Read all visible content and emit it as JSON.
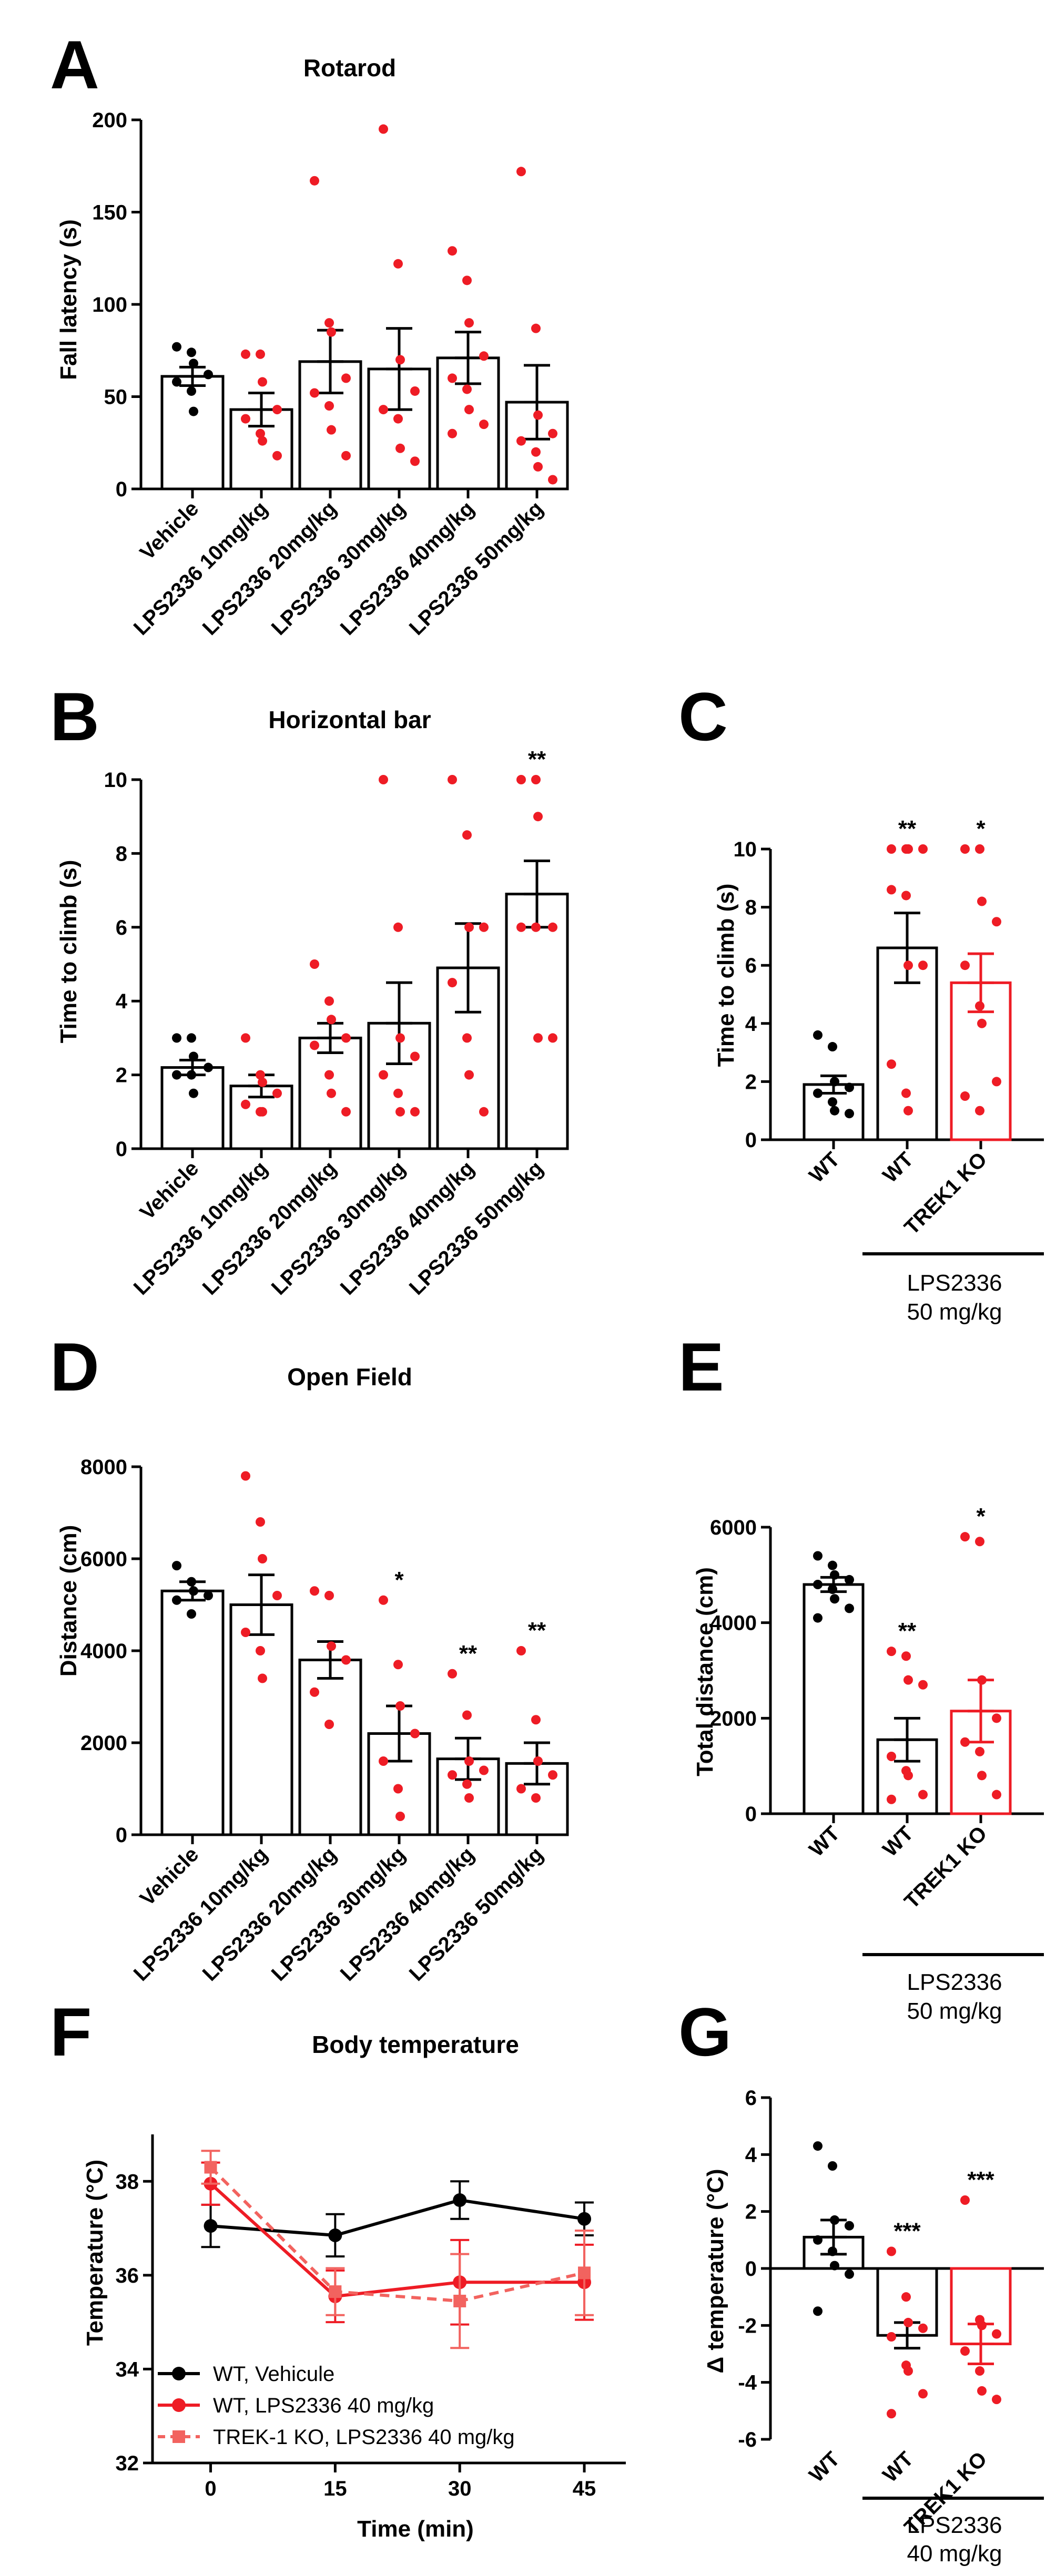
{
  "panel_letters": [
    "A",
    "B",
    "C",
    "D",
    "E",
    "F",
    "G"
  ],
  "chart_data": [
    {
      "panel": "A",
      "type": "bar",
      "title": "Rotarod",
      "ylabel": "Fall latency (s)",
      "xlabel": "",
      "ylim": [
        0,
        200
      ],
      "yticks": [
        0,
        50,
        100,
        150,
        200
      ],
      "categories": [
        "Vehicle",
        "LPS2336 10mg/kg",
        "LPS2336 20mg/kg",
        "LPS2336 30mg/kg",
        "LPS2336 40mg/kg",
        "LPS2336 50mg/kg"
      ],
      "values": [
        61,
        43,
        69,
        65,
        71,
        47
      ],
      "errors": [
        5,
        9,
        17,
        22,
        14,
        20
      ],
      "significance": [
        "",
        "",
        "",
        "",
        "",
        ""
      ],
      "points": [
        [
          77,
          74,
          68,
          62,
          58,
          53,
          42
        ],
        [
          73,
          73,
          58,
          43,
          38,
          30,
          26,
          18
        ],
        [
          167,
          90,
          85,
          60,
          52,
          45,
          32,
          18
        ],
        [
          195,
          122,
          70,
          53,
          43,
          38,
          22,
          15
        ],
        [
          129,
          113,
          90,
          72,
          60,
          54,
          43,
          35,
          30
        ],
        [
          172,
          87,
          40,
          30,
          26,
          20,
          12,
          5
        ]
      ],
      "point_colors": [
        "#000000",
        "#ee1c25",
        "#ee1c25",
        "#ee1c25",
        "#ee1c25",
        "#ee1c25"
      ],
      "bar_colors": [
        "#000000",
        "#000000",
        "#000000",
        "#000000",
        "#000000",
        "#000000"
      ]
    },
    {
      "panel": "B",
      "type": "bar",
      "title": "Horizontal bar",
      "ylabel": "Time to climb (s)",
      "xlabel": "",
      "ylim": [
        0,
        10
      ],
      "yticks": [
        0,
        2,
        4,
        6,
        8,
        10
      ],
      "categories": [
        "Vehicle",
        "LPS2336 10mg/kg",
        "LPS2336 20mg/kg",
        "LPS2336 30mg/kg",
        "LPS2336 40mg/kg",
        "LPS2336 50mg/kg"
      ],
      "values": [
        2.2,
        1.7,
        3.0,
        3.4,
        4.9,
        6.9
      ],
      "errors": [
        0.2,
        0.3,
        0.4,
        1.1,
        1.2,
        0.9
      ],
      "significance": [
        "",
        "",
        "",
        "",
        "",
        "**"
      ],
      "points": [
        [
          3.0,
          3.0,
          2.5,
          2.2,
          2.0,
          2.0,
          1.5
        ],
        [
          3.0,
          2.0,
          1.8,
          1.5,
          1.2,
          1.0,
          1.0
        ],
        [
          5.0,
          4.0,
          3.5,
          3.0,
          2.8,
          2.0,
          1.5,
          1.0
        ],
        [
          10,
          6.0,
          3.0,
          2.5,
          2.0,
          1.5,
          1.0,
          1.0
        ],
        [
          10,
          8.5,
          6.0,
          6.0,
          4.5,
          3.0,
          2.0,
          1.0
        ],
        [
          10,
          10,
          9.0,
          6.0,
          6.0,
          6.0,
          3.0,
          3.0
        ]
      ],
      "point_colors": [
        "#000000",
        "#ee1c25",
        "#ee1c25",
        "#ee1c25",
        "#ee1c25",
        "#ee1c25"
      ],
      "bar_colors": [
        "#000000",
        "#000000",
        "#000000",
        "#000000",
        "#000000",
        "#000000"
      ]
    },
    {
      "panel": "C",
      "type": "bar",
      "title": "",
      "ylabel": "Time to climb (s)",
      "xlabel": "",
      "ylim": [
        0,
        10
      ],
      "yticks": [
        0,
        2,
        4,
        6,
        8,
        10
      ],
      "categories": [
        "WT",
        "WT",
        "TREK1 KO"
      ],
      "values": [
        1.9,
        6.6,
        5.4
      ],
      "errors": [
        0.3,
        1.2,
        1.0
      ],
      "significance": [
        "",
        "**",
        "*"
      ],
      "points": [
        [
          3.6,
          3.2,
          2.0,
          1.8,
          1.6,
          1.3,
          1.0,
          0.9
        ],
        [
          10,
          10,
          10,
          10,
          8.6,
          8.4,
          6.0,
          6.0,
          2.6,
          1.6,
          1.0
        ],
        [
          10,
          10,
          8.2,
          7.5,
          6.0,
          4.6,
          4.0,
          2.0,
          1.5,
          1.0
        ]
      ],
      "point_colors": [
        "#000000",
        "#ee1c25",
        "#ee1c25"
      ],
      "bar_colors": [
        "#000000",
        "#000000",
        "#ee1c25"
      ],
      "group_label": [
        "LPS2336",
        "50 mg/kg"
      ]
    },
    {
      "panel": "D",
      "type": "bar",
      "title": "Open Field",
      "ylabel": "Distance (cm)",
      "xlabel": "",
      "ylim": [
        0,
        8000
      ],
      "yticks": [
        0,
        2000,
        4000,
        6000,
        8000
      ],
      "categories": [
        "Vehicle",
        "LPS2336 10mg/kg",
        "LPS2336 20mg/kg",
        "LPS2336 30mg/kg",
        "LPS2336 40mg/kg",
        "LPS2336 50mg/kg"
      ],
      "values": [
        5300,
        5000,
        3800,
        2200,
        1650,
        1550
      ],
      "errors": [
        200,
        650,
        400,
        600,
        450,
        450
      ],
      "significance": [
        "",
        "",
        "",
        "*",
        "**",
        "**"
      ],
      "points": [
        [
          5850,
          5500,
          5300,
          5200,
          5100,
          4800
        ],
        [
          7800,
          6800,
          6000,
          5200,
          4400,
          4000,
          3400
        ],
        [
          5300,
          5200,
          4100,
          3800,
          3100,
          2400
        ],
        [
          5100,
          3700,
          2800,
          2200,
          1600,
          1000,
          400
        ],
        [
          3500,
          2600,
          1600,
          1400,
          1300,
          1100,
          800
        ],
        [
          4000,
          2500,
          1600,
          1300,
          1000,
          800
        ]
      ],
      "point_colors": [
        "#000000",
        "#ee1c25",
        "#ee1c25",
        "#ee1c25",
        "#ee1c25",
        "#ee1c25"
      ],
      "bar_colors": [
        "#000000",
        "#000000",
        "#000000",
        "#000000",
        "#000000",
        "#000000"
      ]
    },
    {
      "panel": "E",
      "type": "bar",
      "title": "",
      "ylabel": "Total distance (cm)",
      "xlabel": "",
      "ylim": [
        0,
        6000
      ],
      "yticks": [
        0,
        2000,
        4000,
        6000
      ],
      "categories": [
        "WT",
        "WT",
        "TREK1 KO"
      ],
      "values": [
        4800,
        1550,
        2150
      ],
      "errors": [
        150,
        450,
        650
      ],
      "significance": [
        "",
        "**",
        "*"
      ],
      "points": [
        [
          5400,
          5200,
          5000,
          4900,
          4800,
          4700,
          4500,
          4300,
          4100
        ],
        [
          3400,
          3300,
          2800,
          2700,
          1200,
          900,
          800,
          400,
          300
        ],
        [
          5800,
          5700,
          2800,
          2000,
          1500,
          1300,
          800,
          400
        ]
      ],
      "point_colors": [
        "#000000",
        "#ee1c25",
        "#ee1c25"
      ],
      "bar_colors": [
        "#000000",
        "#000000",
        "#ee1c25"
      ],
      "group_label": [
        "LPS2336",
        "50 mg/kg"
      ]
    },
    {
      "panel": "F",
      "type": "line",
      "title": "Body temperature",
      "ylabel": "Temperature (°C)",
      "xlabel": "Time (min)",
      "xlim": [
        -7,
        50
      ],
      "ylim": [
        32,
        39
      ],
      "xticks": [
        0,
        15,
        30,
        45
      ],
      "yticks": [
        32,
        34,
        36,
        38
      ],
      "series": [
        {
          "name": "WT, Vehicule",
          "x": [
            0,
            15,
            30,
            45
          ],
          "y": [
            37.05,
            36.85,
            37.6,
            37.2
          ],
          "err": [
            0.45,
            0.45,
            0.4,
            0.35
          ],
          "color": "#000000",
          "dash": false,
          "marker": "circle"
        },
        {
          "name": "WT, LPS2336 40 mg/kg",
          "x": [
            0,
            15,
            30,
            45
          ],
          "y": [
            37.95,
            35.55,
            35.85,
            35.85
          ],
          "err": [
            0.45,
            0.55,
            0.9,
            0.8
          ],
          "color": "#ee1c25",
          "dash": false,
          "marker": "circle"
        },
        {
          "name": "TREK-1 KO, LPS2336 40 mg/kg",
          "x": [
            0,
            15,
            30,
            45
          ],
          "y": [
            38.3,
            35.65,
            35.45,
            36.05
          ],
          "err": [
            0.35,
            0.5,
            1.0,
            0.9
          ],
          "color": "#f2635f",
          "dash": true,
          "marker": "square"
        }
      ]
    },
    {
      "panel": "G",
      "type": "bar",
      "title": "",
      "ylabel": "Δ temperature (°C)",
      "xlabel": "",
      "ylim": [
        -6,
        6
      ],
      "yticks": [
        -6,
        -4,
        -2,
        0,
        2,
        4,
        6
      ],
      "categories": [
        "WT",
        "WT",
        "TREK1 KO"
      ],
      "values": [
        1.1,
        -2.35,
        -2.65
      ],
      "errors": [
        0.6,
        0.45,
        0.7
      ],
      "significance": [
        "",
        "***",
        "***"
      ],
      "points": [
        [
          4.3,
          3.6,
          1.7,
          1.5,
          1.0,
          0.6,
          0.1,
          -0.2,
          -1.5
        ],
        [
          0.6,
          -1.0,
          -1.9,
          -2.1,
          -2.4,
          -3.4,
          -3.6,
          -4.4,
          -5.1
        ],
        [
          2.4,
          -1.8,
          -2.0,
          -2.3,
          -2.9,
          -3.6,
          -4.3,
          -4.6
        ]
      ],
      "point_colors": [
        "#000000",
        "#ee1c25",
        "#ee1c25"
      ],
      "bar_colors": [
        "#000000",
        "#000000",
        "#ee1c25"
      ],
      "group_label": [
        "LPS2336",
        "40 mg/kg"
      ]
    }
  ]
}
